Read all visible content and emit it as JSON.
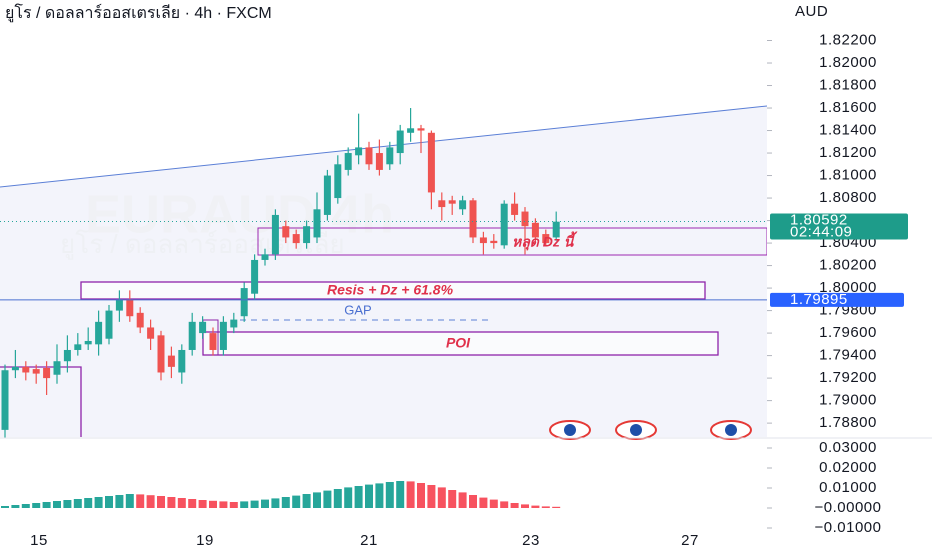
{
  "chart_data": {
    "type": "candlestick",
    "title": "ยูโร / ดอลลาร์ออสเตรเลีย · 4h · FXCM",
    "currency": "AUD",
    "watermark": [
      "EURAUD 4h",
      "ยูโร / ดอลลาร์ออสเตรเลีย"
    ],
    "up_color": "#26a69a",
    "down_color": "#ef5350",
    "ylim": [
      1.7865,
      1.8256
    ],
    "yticks": [
      {
        "value": 1.788,
        "label": "1.78800"
      },
      {
        "value": 1.79,
        "label": "1.79000"
      },
      {
        "value": 1.792,
        "label": "1.79200"
      },
      {
        "value": 1.794,
        "label": "1.79400"
      },
      {
        "value": 1.796,
        "label": "1.79600"
      },
      {
        "value": 1.798,
        "label": "1.79800"
      },
      {
        "value": 1.8,
        "label": "1.80000"
      },
      {
        "value": 1.802,
        "label": "1.80200"
      },
      {
        "value": 1.804,
        "label": "1.80400"
      },
      {
        "value": 1.806,
        "label": "1.80600"
      },
      {
        "value": 1.808,
        "label": "1.80800"
      },
      {
        "value": 1.81,
        "label": "1.81000"
      },
      {
        "value": 1.812,
        "label": "1.81200"
      },
      {
        "value": 1.814,
        "label": "1.81400"
      },
      {
        "value": 1.816,
        "label": "1.81600"
      },
      {
        "value": 1.818,
        "label": "1.81800"
      },
      {
        "value": 1.82,
        "label": "1.82000"
      },
      {
        "value": 1.822,
        "label": "1.82200"
      }
    ],
    "x_tick_labels": [
      "15",
      "19",
      "21",
      "23",
      "27"
    ],
    "ohlc": [
      [
        1.7874,
        1.7932,
        1.7867,
        1.7927
      ],
      [
        1.7927,
        1.7945,
        1.792,
        1.793
      ],
      [
        1.793,
        1.7935,
        1.7918,
        1.7925
      ],
      [
        1.7928,
        1.7932,
        1.7915,
        1.7924
      ],
      [
        1.7929,
        1.7935,
        1.7905,
        1.792
      ],
      [
        1.7923,
        1.795,
        1.7915,
        1.7935
      ],
      [
        1.7935,
        1.7958,
        1.7925,
        1.7945
      ],
      [
        1.7945,
        1.796,
        1.794,
        1.795
      ],
      [
        1.795,
        1.7965,
        1.7945,
        1.7953
      ],
      [
        1.795,
        1.798,
        1.794,
        1.797
      ],
      [
        1.7955,
        1.7985,
        1.795,
        1.798
      ],
      [
        1.798,
        1.7998,
        1.797,
        1.799
      ],
      [
        1.799,
        1.7998,
        1.797,
        1.7975
      ],
      [
        1.7978,
        1.7983,
        1.796,
        1.7965
      ],
      [
        1.7965,
        1.7972,
        1.7945,
        1.7955
      ],
      [
        1.7958,
        1.7962,
        1.7918,
        1.7925
      ],
      [
        1.794,
        1.7948,
        1.792,
        1.793
      ],
      [
        1.7925,
        1.795,
        1.7915,
        1.7945
      ],
      [
        1.7945,
        1.7978,
        1.794,
        1.797
      ],
      [
        1.796,
        1.7975,
        1.7955,
        1.797
      ],
      [
        1.796,
        1.7965,
        1.794,
        1.7945
      ],
      [
        1.7945,
        1.7975,
        1.794,
        1.797
      ],
      [
        1.7965,
        1.7978,
        1.796,
        1.7972
      ],
      [
        1.7975,
        1.8005,
        1.797,
        1.8
      ],
      [
        1.7995,
        1.803,
        1.799,
        1.8025
      ],
      [
        1.8025,
        1.8035,
        1.802,
        1.803
      ],
      [
        1.803,
        1.807,
        1.8025,
        1.8065
      ],
      [
        1.8055,
        1.806,
        1.804,
        1.8045
      ],
      [
        1.8048,
        1.8052,
        1.8035,
        1.804
      ],
      [
        1.804,
        1.806,
        1.8035,
        1.8055
      ],
      [
        1.8045,
        1.8085,
        1.804,
        1.807
      ],
      [
        1.8065,
        1.8105,
        1.806,
        1.81
      ],
      [
        1.808,
        1.8118,
        1.8075,
        1.811
      ],
      [
        1.8105,
        1.8125,
        1.81,
        1.812
      ],
      [
        1.8118,
        1.8155,
        1.811,
        1.8125
      ],
      [
        1.8125,
        1.813,
        1.8105,
        1.811
      ],
      [
        1.812,
        1.8132,
        1.81,
        1.8105
      ],
      [
        1.811,
        1.813,
        1.8105,
        1.8125
      ],
      [
        1.812,
        1.8145,
        1.811,
        1.814
      ],
      [
        1.8138,
        1.816,
        1.813,
        1.8142
      ],
      [
        1.8142,
        1.8145,
        1.812,
        1.814
      ],
      [
        1.8138,
        1.814,
        1.807,
        1.8085
      ],
      [
        1.8078,
        1.8085,
        1.806,
        1.8072
      ],
      [
        1.8078,
        1.8082,
        1.8065,
        1.8075
      ],
      [
        1.807,
        1.8082,
        1.8065,
        1.8078
      ],
      [
        1.8078,
        1.808,
        1.804,
        1.8045
      ],
      [
        1.8045,
        1.805,
        1.803,
        1.804
      ],
      [
        1.8042,
        1.8048,
        1.8035,
        1.804
      ],
      [
        1.8038,
        1.8078,
        1.8035,
        1.8075
      ],
      [
        1.8075,
        1.8085,
        1.806,
        1.8065
      ],
      [
        1.8068,
        1.8072,
        1.803,
        1.8055
      ],
      [
        1.8058,
        1.8062,
        1.804,
        1.8045
      ],
      [
        1.8048,
        1.8052,
        1.8038,
        1.804
      ],
      [
        1.8045,
        1.8068,
        1.8042,
        1.8059
      ]
    ],
    "last_price": {
      "value": 1.80592,
      "label": "1.80592"
    },
    "countdown": "02:44:09",
    "alert_price": {
      "value": 1.79895,
      "label": "1.79895"
    },
    "annotations": {
      "dz_break": "หลุด Dz นี้",
      "resis": "Resis + Dz + 61.8%",
      "gap": "GAP",
      "poi": "POI"
    },
    "histogram": {
      "ylim": [
        -0.0105,
        0.0335
      ],
      "yticks": [
        {
          "value": 0.03,
          "label": "0.03000"
        },
        {
          "value": 0.02,
          "label": "0.02000"
        },
        {
          "value": 0.01,
          "label": "0.01000"
        },
        {
          "value": 0,
          "label": "−0.00000"
        },
        {
          "value": -0.01,
          "label": "−0.01000"
        }
      ],
      "values": [
        0.001,
        0.0015,
        0.002,
        0.0025,
        0.003,
        0.0035,
        0.004,
        0.0045,
        0.005,
        0.0055,
        0.006,
        0.0065,
        0.007,
        0.0068,
        0.0064,
        0.006,
        0.0055,
        0.005,
        0.0045,
        0.004,
        0.0036,
        0.0033,
        0.003,
        0.0033,
        0.0037,
        0.0042,
        0.0048,
        0.0055,
        0.0062,
        0.007,
        0.0078,
        0.0087,
        0.0095,
        0.0103,
        0.011,
        0.0117,
        0.0123,
        0.013,
        0.0135,
        0.0133,
        0.0125,
        0.0115,
        0.0103,
        0.009,
        0.0078,
        0.0065,
        0.0052,
        0.0042,
        0.0033,
        0.0025,
        0.0018,
        0.0012,
        0.0008,
        0.0006
      ]
    }
  }
}
